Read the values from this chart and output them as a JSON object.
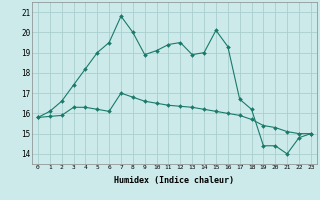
{
  "title": "",
  "xlabel": "Humidex (Indice chaleur)",
  "ylabel": "",
  "bg_color": "#cceaea",
  "grid_color": "#aacfcf",
  "line_color": "#1a7a6a",
  "xlim": [
    -0.5,
    23.5
  ],
  "ylim": [
    13.5,
    21.5
  ],
  "yticks": [
    14,
    15,
    16,
    17,
    18,
    19,
    20,
    21
  ],
  "xticks": [
    0,
    1,
    2,
    3,
    4,
    5,
    6,
    7,
    8,
    9,
    10,
    11,
    12,
    13,
    14,
    15,
    16,
    17,
    18,
    19,
    20,
    21,
    22,
    23
  ],
  "line1_x": [
    0,
    1,
    2,
    3,
    4,
    5,
    6,
    7,
    8,
    9,
    10,
    11,
    12,
    13,
    14,
    15,
    16,
    17,
    18,
    19,
    20,
    21,
    22,
    23
  ],
  "line1_y": [
    15.8,
    16.1,
    16.6,
    17.4,
    18.2,
    19.0,
    19.5,
    20.8,
    20.0,
    18.9,
    19.1,
    19.4,
    19.5,
    18.9,
    19.0,
    20.1,
    19.3,
    16.7,
    16.2,
    14.4,
    14.4,
    14.0,
    14.8,
    15.0
  ],
  "line2_x": [
    0,
    1,
    2,
    3,
    4,
    5,
    6,
    7,
    8,
    9,
    10,
    11,
    12,
    13,
    14,
    15,
    16,
    17,
    18,
    19,
    20,
    21,
    22,
    23
  ],
  "line2_y": [
    15.8,
    15.85,
    15.9,
    16.3,
    16.3,
    16.2,
    16.1,
    17.0,
    16.8,
    16.6,
    16.5,
    16.4,
    16.35,
    16.3,
    16.2,
    16.1,
    16.0,
    15.9,
    15.7,
    15.4,
    15.3,
    15.1,
    15.0,
    15.0
  ]
}
